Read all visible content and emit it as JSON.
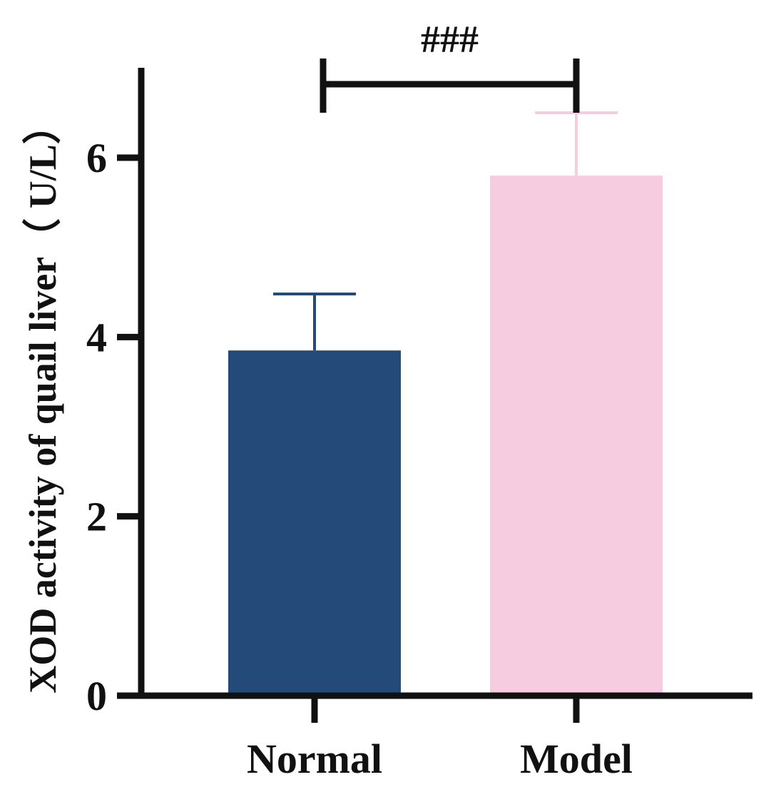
{
  "chart_data": {
    "type": "bar",
    "categories": [
      "Normal",
      "Model"
    ],
    "values": [
      3.85,
      5.8
    ],
    "error_upper": [
      4.48,
      6.5
    ],
    "colors": [
      "#234a78",
      "#f5cce0"
    ],
    "ylabel": "XOD activity of quail liver（ U/L）",
    "xlabel": "",
    "ylim": [
      0,
      7
    ],
    "yticks": [
      "0",
      "2",
      "4",
      "6"
    ],
    "ytick_values": [
      0,
      2,
      4,
      6
    ],
    "significance": {
      "label": "###",
      "between": [
        "Normal",
        "Model"
      ]
    },
    "grid": false,
    "legend": "none"
  }
}
